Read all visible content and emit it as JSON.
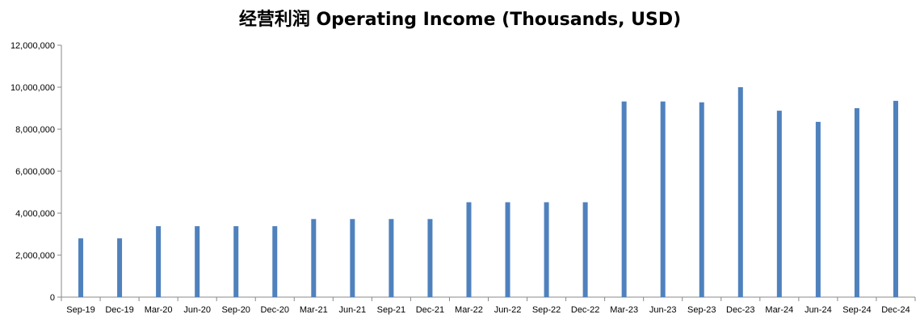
{
  "chart_data": {
    "type": "bar",
    "title": "经营利润 Operating Income (Thousands, USD)",
    "xlabel": "",
    "ylabel": "",
    "ylim": [
      0,
      12000000
    ],
    "yticks": [
      "0",
      "2,000,000",
      "4,000,000",
      "6,000,000",
      "8,000,000",
      "10,000,000",
      "12,000,000"
    ],
    "ytick_values": [
      0,
      2000000,
      4000000,
      6000000,
      8000000,
      10000000,
      12000000
    ],
    "grid": false,
    "legend": "none",
    "bar_color": "#4F81BD",
    "categories": [
      "Sep-19",
      "Dec-19",
      "Mar-20",
      "Jun-20",
      "Sep-20",
      "Dec-20",
      "Mar-21",
      "Jun-21",
      "Sep-21",
      "Dec-21",
      "Mar-22",
      "Jun-22",
      "Sep-22",
      "Dec-22",
      "Mar-23",
      "Jun-23",
      "Sep-23",
      "Dec-23",
      "Mar-24",
      "Jun-24",
      "Sep-24",
      "Dec-24"
    ],
    "values": [
      2800000,
      2800000,
      3380000,
      3380000,
      3380000,
      3380000,
      3720000,
      3720000,
      3720000,
      3720000,
      4520000,
      4520000,
      4520000,
      4520000,
      9320000,
      9320000,
      9280000,
      10000000,
      8880000,
      8350000,
      9000000,
      9350000
    ]
  }
}
